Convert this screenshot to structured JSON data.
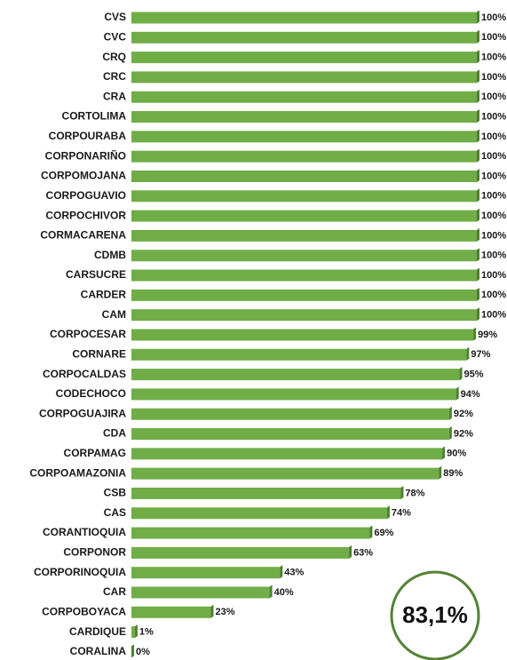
{
  "chart_data": {
    "type": "bar",
    "orientation": "horizontal",
    "categories": [
      "CVS",
      "CVC",
      "CRQ",
      "CRC",
      "CRA",
      "CORTOLIMA",
      "CORPOURABA",
      "CORPONARIÑO",
      "CORPOMOJANA",
      "CORPOGUAVIO",
      "CORPOCHIVOR",
      "CORMACARENA",
      "CDMB",
      "CARSUCRE",
      "CARDER",
      "CAM",
      "CORPOCESAR",
      "CORNARE",
      "CORPOCALDAS",
      "CODECHOCO",
      "CORPOGUAJIRA",
      "CDA",
      "CORPAMAG",
      "CORPOAMAZONIA",
      "CSB",
      "CAS",
      "CORANTIOQUIA",
      "CORPONOR",
      "CORPORINOQUIA",
      "CAR",
      "CORPOBOYACA",
      "CARDIQUE",
      "CORALINA"
    ],
    "values": [
      100,
      100,
      100,
      100,
      100,
      100,
      100,
      100,
      100,
      100,
      100,
      100,
      100,
      100,
      100,
      100,
      99,
      97,
      95,
      94,
      92,
      92,
      90,
      89,
      78,
      74,
      69,
      63,
      43,
      40,
      23,
      1,
      0
    ],
    "value_labels": [
      "100%",
      "100%",
      "100%",
      "100%",
      "100%",
      "100%",
      "100%",
      "100%",
      "100%",
      "100%",
      "100%",
      "100%",
      "100%",
      "100%",
      "100%",
      "100%",
      "99%",
      "97%",
      "95%",
      "94%",
      "92%",
      "92%",
      "90%",
      "89%",
      "78%",
      "74%",
      "69%",
      "63%",
      "43%",
      "40%",
      "23%",
      "1%",
      "0%"
    ],
    "color": "#70ad47",
    "xlim": [
      0,
      100
    ],
    "annotation": "83,1%"
  }
}
